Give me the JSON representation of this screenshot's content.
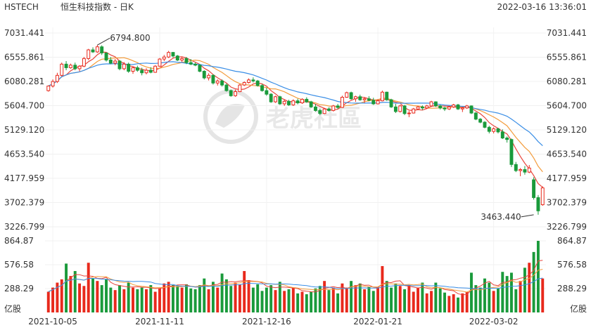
{
  "header": {
    "symbol": "HSTECH",
    "name": "恒生科技指数 - 日K",
    "datetime": "2022-03-16 13:36:01"
  },
  "watermark": "老虎社區",
  "colors": {
    "up": "#e8291c",
    "down": "#1a9a3b",
    "ma_short": "#e8453c",
    "ma_mid": "#f39c3c",
    "ma_long": "#3a8ee6",
    "axis_text": "#333333"
  },
  "chart_data": {
    "type": "candlestick",
    "price_axis": {
      "ticks": [
        "7031.441",
        "6555.861",
        "6080.281",
        "5604.700",
        "5129.120",
        "4653.540",
        "4177.959",
        "3702.379",
        "3226.799"
      ],
      "range": [
        3226.799,
        7031.441
      ]
    },
    "volume_axis": {
      "ticks": [
        "864.87",
        "576.58",
        "288.29"
      ],
      "unit": "亿股",
      "range": [
        0,
        864.87
      ]
    },
    "x_ticks": [
      "2021-10-05",
      "2021-11-11",
      "2021-12-16",
      "2022-01-21",
      "2022-03-02"
    ],
    "annotations": [
      {
        "label": "6794.800",
        "value": 6794.8,
        "index": 11
      },
      {
        "label": "3463.440",
        "value": 3463.44,
        "index": 109
      }
    ],
    "candles": [
      {
        "o": 5900,
        "h": 6000,
        "l": 5880,
        "c": 5990,
        "v": 250
      },
      {
        "o": 5990,
        "h": 6120,
        "l": 5960,
        "c": 6080,
        "v": 300
      },
      {
        "o": 6080,
        "h": 6250,
        "l": 6050,
        "c": 6200,
        "v": 360
      },
      {
        "o": 6200,
        "h": 6450,
        "l": 6180,
        "c": 6420,
        "v": 400
      },
      {
        "o": 6420,
        "h": 6480,
        "l": 6300,
        "c": 6350,
        "v": 590
      },
      {
        "o": 6350,
        "h": 6430,
        "l": 6330,
        "c": 6400,
        "v": 440
      },
      {
        "o": 6400,
        "h": 6450,
        "l": 6300,
        "c": 6330,
        "v": 500
      },
      {
        "o": 6330,
        "h": 6400,
        "l": 6280,
        "c": 6380,
        "v": 350
      },
      {
        "o": 6380,
        "h": 6560,
        "l": 6360,
        "c": 6530,
        "v": 320
      },
      {
        "o": 6530,
        "h": 6720,
        "l": 6500,
        "c": 6700,
        "v": 600
      },
      {
        "o": 6700,
        "h": 6750,
        "l": 6640,
        "c": 6660,
        "v": 410
      },
      {
        "o": 6660,
        "h": 6794.8,
        "l": 6640,
        "c": 6760,
        "v": 380
      },
      {
        "o": 6760,
        "h": 6790,
        "l": 6600,
        "c": 6640,
        "v": 330
      },
      {
        "o": 6640,
        "h": 6650,
        "l": 6470,
        "c": 6500,
        "v": 400
      },
      {
        "o": 6500,
        "h": 6560,
        "l": 6420,
        "c": 6440,
        "v": 300
      },
      {
        "o": 6440,
        "h": 6520,
        "l": 6400,
        "c": 6480,
        "v": 270
      },
      {
        "o": 6480,
        "h": 6500,
        "l": 6300,
        "c": 6330,
        "v": 330
      },
      {
        "o": 6330,
        "h": 6460,
        "l": 6300,
        "c": 6420,
        "v": 280
      },
      {
        "o": 6420,
        "h": 6450,
        "l": 6250,
        "c": 6280,
        "v": 360
      },
      {
        "o": 6280,
        "h": 6370,
        "l": 6230,
        "c": 6350,
        "v": 300
      },
      {
        "o": 6350,
        "h": 6390,
        "l": 6270,
        "c": 6300,
        "v": 280
      },
      {
        "o": 6300,
        "h": 6350,
        "l": 6200,
        "c": 6250,
        "v": 300
      },
      {
        "o": 6250,
        "h": 6340,
        "l": 6220,
        "c": 6300,
        "v": 280
      },
      {
        "o": 6300,
        "h": 6360,
        "l": 6240,
        "c": 6260,
        "v": 330
      },
      {
        "o": 6260,
        "h": 6400,
        "l": 6250,
        "c": 6380,
        "v": 250
      },
      {
        "o": 6380,
        "h": 6540,
        "l": 6370,
        "c": 6520,
        "v": 290
      },
      {
        "o": 6520,
        "h": 6600,
        "l": 6480,
        "c": 6560,
        "v": 350
      },
      {
        "o": 6560,
        "h": 6680,
        "l": 6540,
        "c": 6650,
        "v": 370
      },
      {
        "o": 6650,
        "h": 6660,
        "l": 6550,
        "c": 6580,
        "v": 330
      },
      {
        "o": 6580,
        "h": 6600,
        "l": 6480,
        "c": 6500,
        "v": 320
      },
      {
        "o": 6500,
        "h": 6560,
        "l": 6460,
        "c": 6530,
        "v": 300
      },
      {
        "o": 6530,
        "h": 6560,
        "l": 6420,
        "c": 6450,
        "v": 340
      },
      {
        "o": 6450,
        "h": 6520,
        "l": 6400,
        "c": 6420,
        "v": 290
      },
      {
        "o": 6420,
        "h": 6450,
        "l": 6380,
        "c": 6400,
        "v": 280
      },
      {
        "o": 6400,
        "h": 6420,
        "l": 6260,
        "c": 6280,
        "v": 330
      },
      {
        "o": 6280,
        "h": 6300,
        "l": 6120,
        "c": 6150,
        "v": 410
      },
      {
        "o": 6150,
        "h": 6240,
        "l": 6100,
        "c": 6200,
        "v": 280
      },
      {
        "o": 6200,
        "h": 6220,
        "l": 6020,
        "c": 6050,
        "v": 370
      },
      {
        "o": 6050,
        "h": 6120,
        "l": 6000,
        "c": 6090,
        "v": 300
      },
      {
        "o": 6090,
        "h": 6120,
        "l": 5980,
        "c": 6010,
        "v": 470
      },
      {
        "o": 6010,
        "h": 6040,
        "l": 5880,
        "c": 5900,
        "v": 400
      },
      {
        "o": 5900,
        "h": 5920,
        "l": 5780,
        "c": 5800,
        "v": 320
      },
      {
        "o": 5800,
        "h": 5920,
        "l": 5780,
        "c": 5880,
        "v": 360
      },
      {
        "o": 5880,
        "h": 6030,
        "l": 5870,
        "c": 6010,
        "v": 340
      },
      {
        "o": 6010,
        "h": 6080,
        "l": 5990,
        "c": 6060,
        "v": 500
      },
      {
        "o": 6060,
        "h": 6140,
        "l": 6040,
        "c": 6110,
        "v": 390
      },
      {
        "o": 6110,
        "h": 6160,
        "l": 6060,
        "c": 6090,
        "v": 300
      },
      {
        "o": 6090,
        "h": 6110,
        "l": 5980,
        "c": 6000,
        "v": 340
      },
      {
        "o": 6000,
        "h": 6030,
        "l": 5880,
        "c": 5900,
        "v": 260
      },
      {
        "o": 5900,
        "h": 5960,
        "l": 5800,
        "c": 5830,
        "v": 300
      },
      {
        "o": 5830,
        "h": 5850,
        "l": 5660,
        "c": 5680,
        "v": 330
      },
      {
        "o": 5680,
        "h": 5800,
        "l": 5660,
        "c": 5780,
        "v": 270
      },
      {
        "o": 5780,
        "h": 5800,
        "l": 5620,
        "c": 5640,
        "v": 370
      },
      {
        "o": 5640,
        "h": 5720,
        "l": 5600,
        "c": 5690,
        "v": 260
      },
      {
        "o": 5690,
        "h": 5720,
        "l": 5600,
        "c": 5620,
        "v": 280
      },
      {
        "o": 5620,
        "h": 5730,
        "l": 5600,
        "c": 5700,
        "v": 300
      },
      {
        "o": 5700,
        "h": 5740,
        "l": 5630,
        "c": 5660,
        "v": 230
      },
      {
        "o": 5660,
        "h": 5750,
        "l": 5640,
        "c": 5730,
        "v": 250
      },
      {
        "o": 5730,
        "h": 5770,
        "l": 5660,
        "c": 5680,
        "v": 220
      },
      {
        "o": 5680,
        "h": 5700,
        "l": 5560,
        "c": 5580,
        "v": 250
      },
      {
        "o": 5580,
        "h": 5640,
        "l": 5490,
        "c": 5510,
        "v": 290
      },
      {
        "o": 5510,
        "h": 5540,
        "l": 5420,
        "c": 5450,
        "v": 320
      },
      {
        "o": 5450,
        "h": 5560,
        "l": 5440,
        "c": 5540,
        "v": 380
      },
      {
        "o": 5540,
        "h": 5570,
        "l": 5490,
        "c": 5510,
        "v": 270
      },
      {
        "o": 5510,
        "h": 5620,
        "l": 5490,
        "c": 5600,
        "v": 300
      },
      {
        "o": 5600,
        "h": 5640,
        "l": 5540,
        "c": 5570,
        "v": 230
      },
      {
        "o": 5570,
        "h": 5800,
        "l": 5560,
        "c": 5770,
        "v": 350
      },
      {
        "o": 5770,
        "h": 5880,
        "l": 5760,
        "c": 5860,
        "v": 300
      },
      {
        "o": 5860,
        "h": 5880,
        "l": 5720,
        "c": 5740,
        "v": 380
      },
      {
        "o": 5740,
        "h": 5800,
        "l": 5680,
        "c": 5780,
        "v": 330
      },
      {
        "o": 5780,
        "h": 5820,
        "l": 5700,
        "c": 5720,
        "v": 350
      },
      {
        "o": 5720,
        "h": 5770,
        "l": 5660,
        "c": 5740,
        "v": 280
      },
      {
        "o": 5740,
        "h": 5790,
        "l": 5690,
        "c": 5710,
        "v": 310
      },
      {
        "o": 5710,
        "h": 5760,
        "l": 5620,
        "c": 5640,
        "v": 260
      },
      {
        "o": 5640,
        "h": 5730,
        "l": 5630,
        "c": 5700,
        "v": 300
      },
      {
        "o": 5700,
        "h": 5900,
        "l": 5690,
        "c": 5870,
        "v": 560
      },
      {
        "o": 5870,
        "h": 5880,
        "l": 5700,
        "c": 5720,
        "v": 380
      },
      {
        "o": 5720,
        "h": 5740,
        "l": 5560,
        "c": 5580,
        "v": 300
      },
      {
        "o": 5580,
        "h": 5640,
        "l": 5460,
        "c": 5490,
        "v": 350
      },
      {
        "o": 5490,
        "h": 5620,
        "l": 5470,
        "c": 5600,
        "v": 320
      },
      {
        "o": 5600,
        "h": 5620,
        "l": 5420,
        "c": 5450,
        "v": 280
      },
      {
        "o": 5450,
        "h": 5500,
        "l": 5380,
        "c": 5460,
        "v": 330
      },
      {
        "o": 5460,
        "h": 5560,
        "l": 5450,
        "c": 5540,
        "v": 250
      },
      {
        "o": 5540,
        "h": 5600,
        "l": 5520,
        "c": 5580,
        "v": 300
      },
      {
        "o": 5580,
        "h": 5610,
        "l": 5520,
        "c": 5560,
        "v": 360
      },
      {
        "o": 5560,
        "h": 5620,
        "l": 5540,
        "c": 5600,
        "v": 230
      },
      {
        "o": 5600,
        "h": 5700,
        "l": 5580,
        "c": 5680,
        "v": 260
      },
      {
        "o": 5680,
        "h": 5690,
        "l": 5580,
        "c": 5600,
        "v": 360
      },
      {
        "o": 5600,
        "h": 5620,
        "l": 5530,
        "c": 5560,
        "v": 290
      },
      {
        "o": 5560,
        "h": 5580,
        "l": 5500,
        "c": 5540,
        "v": 240
      },
      {
        "o": 5540,
        "h": 5600,
        "l": 5520,
        "c": 5580,
        "v": 200
      },
      {
        "o": 5580,
        "h": 5640,
        "l": 5560,
        "c": 5620,
        "v": 220
      },
      {
        "o": 5620,
        "h": 5640,
        "l": 5520,
        "c": 5540,
        "v": 180
      },
      {
        "o": 5540,
        "h": 5580,
        "l": 5480,
        "c": 5560,
        "v": 230
      },
      {
        "o": 5560,
        "h": 5620,
        "l": 5540,
        "c": 5600,
        "v": 250
      },
      {
        "o": 5600,
        "h": 5610,
        "l": 5440,
        "c": 5460,
        "v": 480
      },
      {
        "o": 5460,
        "h": 5480,
        "l": 5320,
        "c": 5340,
        "v": 330
      },
      {
        "o": 5340,
        "h": 5360,
        "l": 5260,
        "c": 5280,
        "v": 300
      },
      {
        "o": 5280,
        "h": 5300,
        "l": 5160,
        "c": 5180,
        "v": 410
      },
      {
        "o": 5180,
        "h": 5210,
        "l": 5060,
        "c": 5100,
        "v": 360
      },
      {
        "o": 5100,
        "h": 5180,
        "l": 5060,
        "c": 5150,
        "v": 260
      },
      {
        "o": 5150,
        "h": 5170,
        "l": 5060,
        "c": 5090,
        "v": 290
      },
      {
        "o": 5090,
        "h": 5140,
        "l": 4950,
        "c": 4970,
        "v": 490
      },
      {
        "o": 4970,
        "h": 5000,
        "l": 4880,
        "c": 4940,
        "v": 440
      },
      {
        "o": 4940,
        "h": 4960,
        "l": 4400,
        "c": 4450,
        "v": 480
      },
      {
        "o": 4450,
        "h": 4500,
        "l": 4300,
        "c": 4330,
        "v": 280
      },
      {
        "o": 4330,
        "h": 4380,
        "l": 4220,
        "c": 4350,
        "v": 380
      },
      {
        "o": 4350,
        "h": 4420,
        "l": 4250,
        "c": 4300,
        "v": 540
      },
      {
        "o": 4300,
        "h": 4440,
        "l": 4280,
        "c": 4380,
        "v": 600
      },
      {
        "o": 4150,
        "h": 4200,
        "l": 3760,
        "c": 3800,
        "v": 730
      },
      {
        "o": 3800,
        "h": 3850,
        "l": 3463.44,
        "c": 3540,
        "v": 864.87
      },
      {
        "o": 3660,
        "h": 4020,
        "l": 3640,
        "c": 3990,
        "v": 410
      }
    ]
  }
}
